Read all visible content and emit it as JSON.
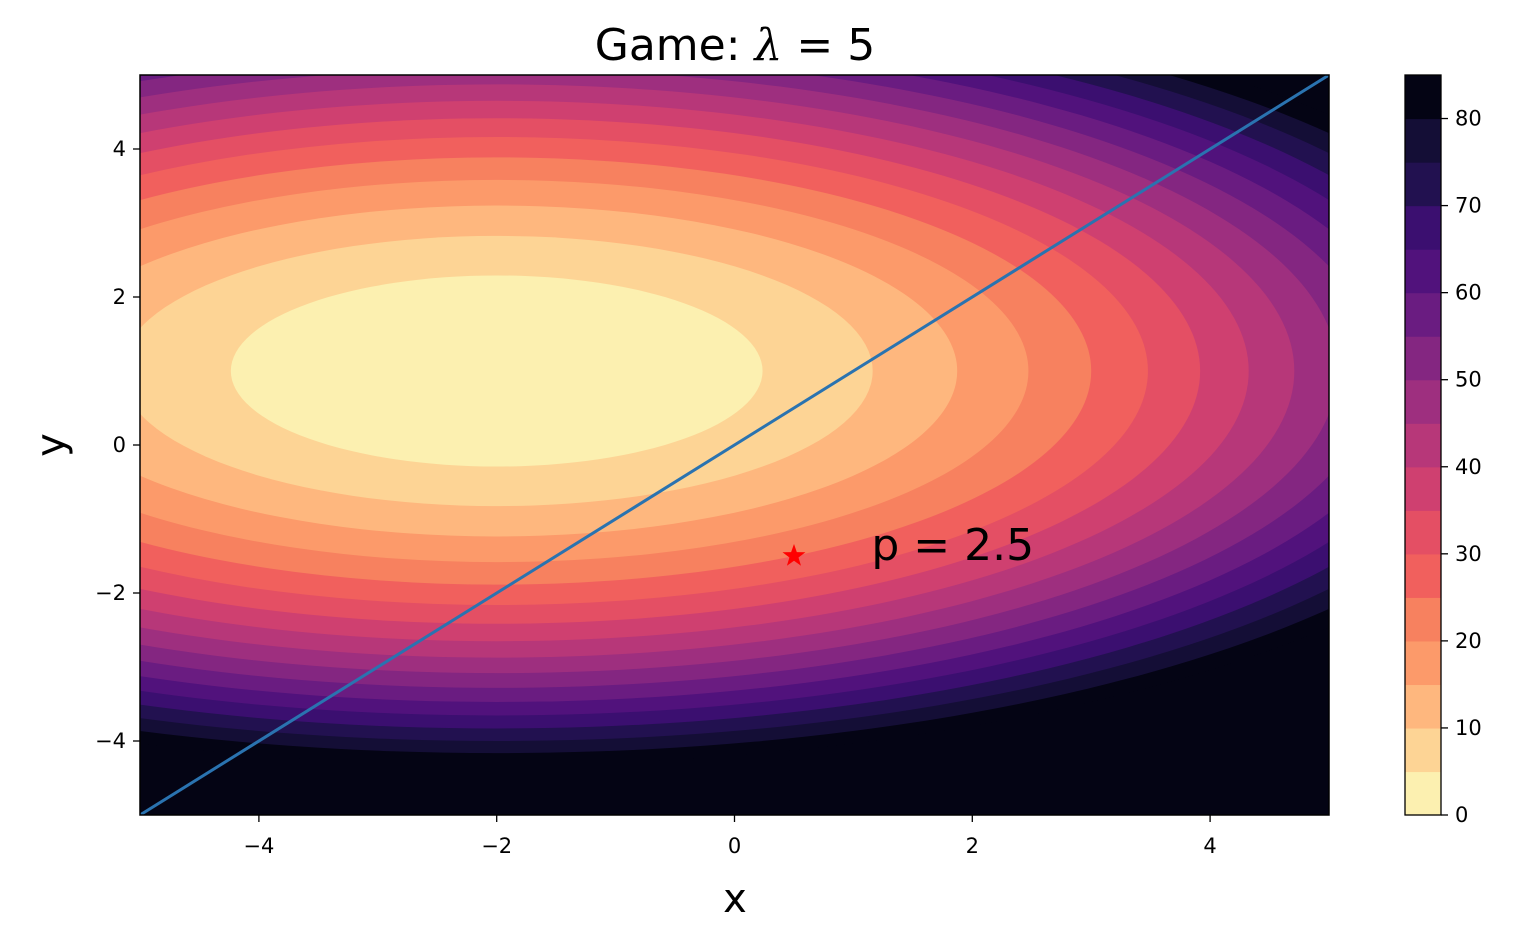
{
  "chart_data": {
    "type": "contour",
    "title": "Game: λ = 5",
    "title_parts": {
      "prefix": "Game: ",
      "symbol": "λ",
      "suffix": " = 5"
    },
    "xlabel": "x",
    "ylabel": "y",
    "xlim": [
      -5,
      5
    ],
    "ylim": [
      -5,
      5
    ],
    "xticks": [
      -4,
      -2,
      0,
      2,
      4
    ],
    "yticks": [
      -4,
      -2,
      0,
      2,
      4
    ],
    "xtick_labels": [
      "−4",
      "−2",
      "0",
      "2",
      "4"
    ],
    "ytick_labels": [
      "−4",
      "−2",
      "0",
      "2",
      "4"
    ],
    "grid": false,
    "colormap": "magma_r",
    "contour_center": {
      "x": -2,
      "y": 1
    },
    "contour_levels": [
      0,
      5,
      10,
      15,
      20,
      25,
      30,
      35,
      40,
      45,
      50,
      55,
      60,
      65,
      70,
      75,
      80,
      85
    ],
    "level_colors": [
      "#fcf0b0",
      "#fdd495",
      "#feb77e",
      "#fc9a6a",
      "#f7815f",
      "#f1605d",
      "#e44f64",
      "#cf4070",
      "#b73779",
      "#9e2f7f",
      "#842681",
      "#6a1c81",
      "#51127c",
      "#3b0f70",
      "#221150",
      "#140e36",
      "#040414"
    ],
    "colorbar": {
      "vmin": 0,
      "vmax": 85,
      "ticks": [
        0,
        10,
        20,
        30,
        40,
        50,
        60,
        70,
        80
      ],
      "tick_labels": [
        "0",
        "10",
        "20",
        "30",
        "40",
        "50",
        "60",
        "70",
        "80"
      ]
    },
    "series": [
      {
        "type": "line",
        "color": "#2a73b0",
        "x": [
          -5,
          5
        ],
        "y": [
          -5,
          5
        ]
      }
    ],
    "marker": {
      "x": 0.5,
      "y": -1.5,
      "symbol": "star",
      "color": "#ff0000"
    },
    "annotations": [
      {
        "text": "p = 2.5",
        "x": 1.0,
        "y": -1.35
      }
    ]
  }
}
